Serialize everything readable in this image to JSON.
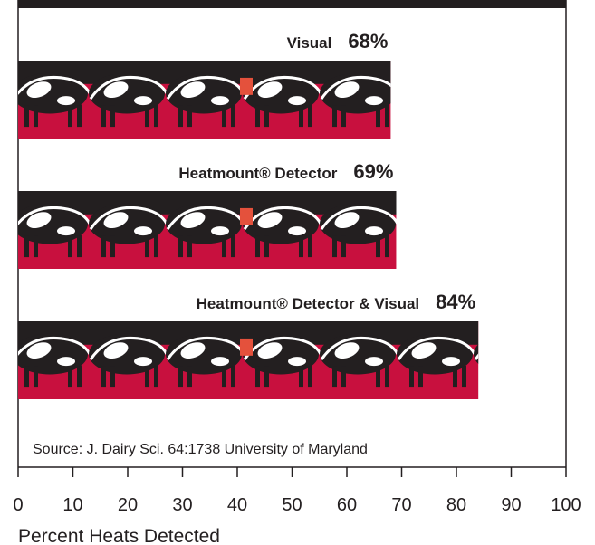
{
  "chart_data": {
    "type": "bar",
    "orientation": "horizontal",
    "categories": [
      "Visual",
      "Heatmount® Detector",
      "Heatmount® Detector & Visual"
    ],
    "values": [
      68,
      69,
      84
    ],
    "value_labels": [
      "68%",
      "69%",
      "84%"
    ],
    "color": "#c8103e",
    "xlim": [
      0,
      100
    ],
    "xticks": [
      0,
      10,
      20,
      30,
      40,
      50,
      60,
      70,
      80,
      90,
      100
    ],
    "xlabel": "Percent Heats Detected",
    "annotation": "Source: J. Dairy Sci. 64:1738 University of Maryland"
  }
}
